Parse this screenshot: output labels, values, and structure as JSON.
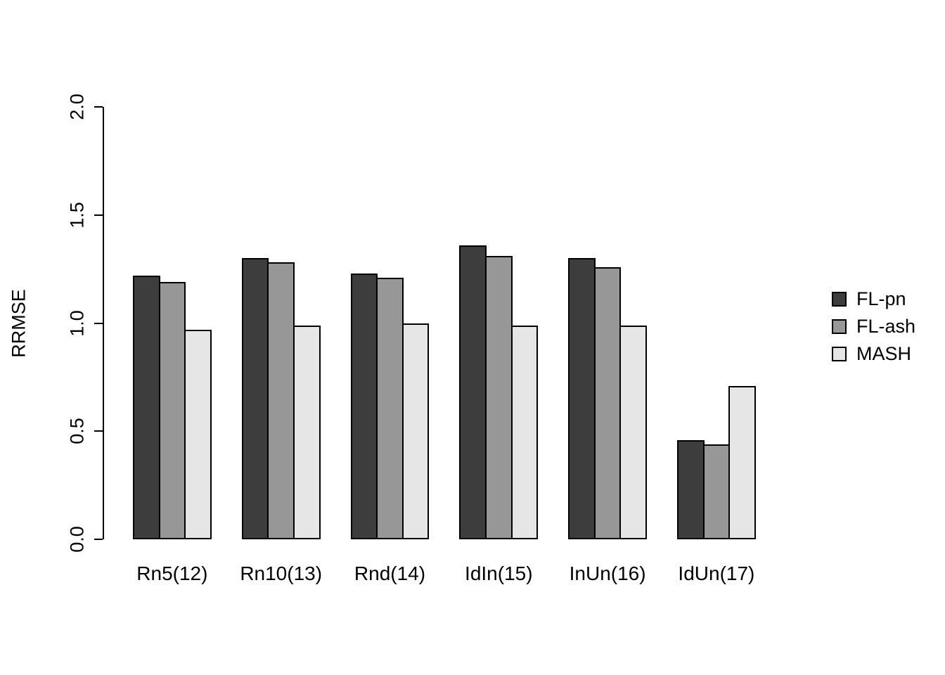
{
  "chart_data": {
    "type": "bar",
    "title": "",
    "xlabel": "",
    "ylabel": "RRMSE",
    "ylim": [
      0,
      2
    ],
    "yticks": [
      0,
      0.5,
      1,
      1.5,
      2
    ],
    "ytick_labels": [
      "0.0",
      "0.5",
      "1.0",
      "1.5",
      "2.0"
    ],
    "grid": false,
    "legend_position": "right",
    "bar_border_color": "#000000",
    "categories": [
      "Rn5(12)",
      "Rn10(13)",
      "Rnd(14)",
      "IdIn(15)",
      "InUn(16)",
      "IdUn(17)"
    ],
    "series": [
      {
        "name": "FL-pn",
        "color": "#3d3d3d",
        "values": [
          1.22,
          1.3,
          1.23,
          1.36,
          1.3,
          0.46
        ]
      },
      {
        "name": "FL-ash",
        "color": "#979797",
        "values": [
          1.19,
          1.28,
          1.21,
          1.31,
          1.26,
          0.44
        ]
      },
      {
        "name": "MASH",
        "color": "#e6e6e6",
        "values": [
          0.97,
          0.99,
          1.0,
          0.99,
          0.99,
          0.71
        ]
      }
    ]
  }
}
